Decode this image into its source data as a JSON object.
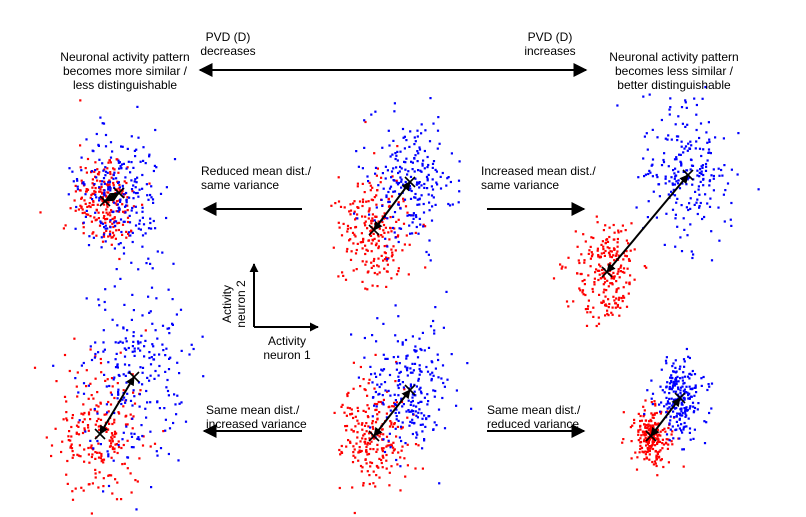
{
  "top": {
    "pvd_left": [
      "PVD (D)",
      "decreases"
    ],
    "pvd_right": [
      "PVD (D)",
      "increases"
    ],
    "left_desc": [
      "Neuronal activity pattern",
      "becomes more similar /",
      "less distinguishable"
    ],
    "right_desc": [
      "Neuronal activity pattern",
      "becomes less similar /",
      "better distinguishable"
    ]
  },
  "row1": {
    "left_label": [
      "Reduced mean dist./",
      "same variance"
    ],
    "right_label": [
      "Increased mean dist./",
      "same variance"
    ]
  },
  "row2": {
    "left_label": [
      "Same mean dist./",
      "increased variance"
    ],
    "right_label": [
      "Same mean dist./",
      "reduced variance"
    ]
  },
  "axes": {
    "y_label": [
      "Activity",
      "neuron 2"
    ],
    "x_label": [
      "Activity",
      "neuron 1"
    ]
  },
  "colors": {
    "class_a": "#ff0000",
    "class_b": "#0000ff",
    "arrow": "#000000"
  },
  "clusters": [
    {
      "name": "row1-left",
      "red": [
        105,
        201,
        16,
        24
      ],
      "blue": [
        119,
        193,
        20,
        30
      ]
    },
    {
      "name": "row1-center",
      "red": [
        374,
        230,
        17,
        28
      ],
      "blue": [
        410,
        182,
        22,
        32
      ]
    },
    {
      "name": "row1-right",
      "red": [
        607,
        272,
        17,
        26
      ],
      "blue": [
        688,
        175,
        22,
        33
      ]
    },
    {
      "name": "row2-left",
      "red": [
        100,
        434,
        22,
        36
      ],
      "blue": [
        134,
        377,
        27,
        46
      ]
    },
    {
      "name": "row2-center",
      "red": [
        374,
        436,
        17,
        28
      ],
      "blue": [
        410,
        390,
        22,
        32
      ]
    },
    {
      "name": "row2-right",
      "red": [
        651,
        436,
        9,
        14
      ],
      "blue": [
        680,
        398,
        13,
        20
      ]
    }
  ]
}
